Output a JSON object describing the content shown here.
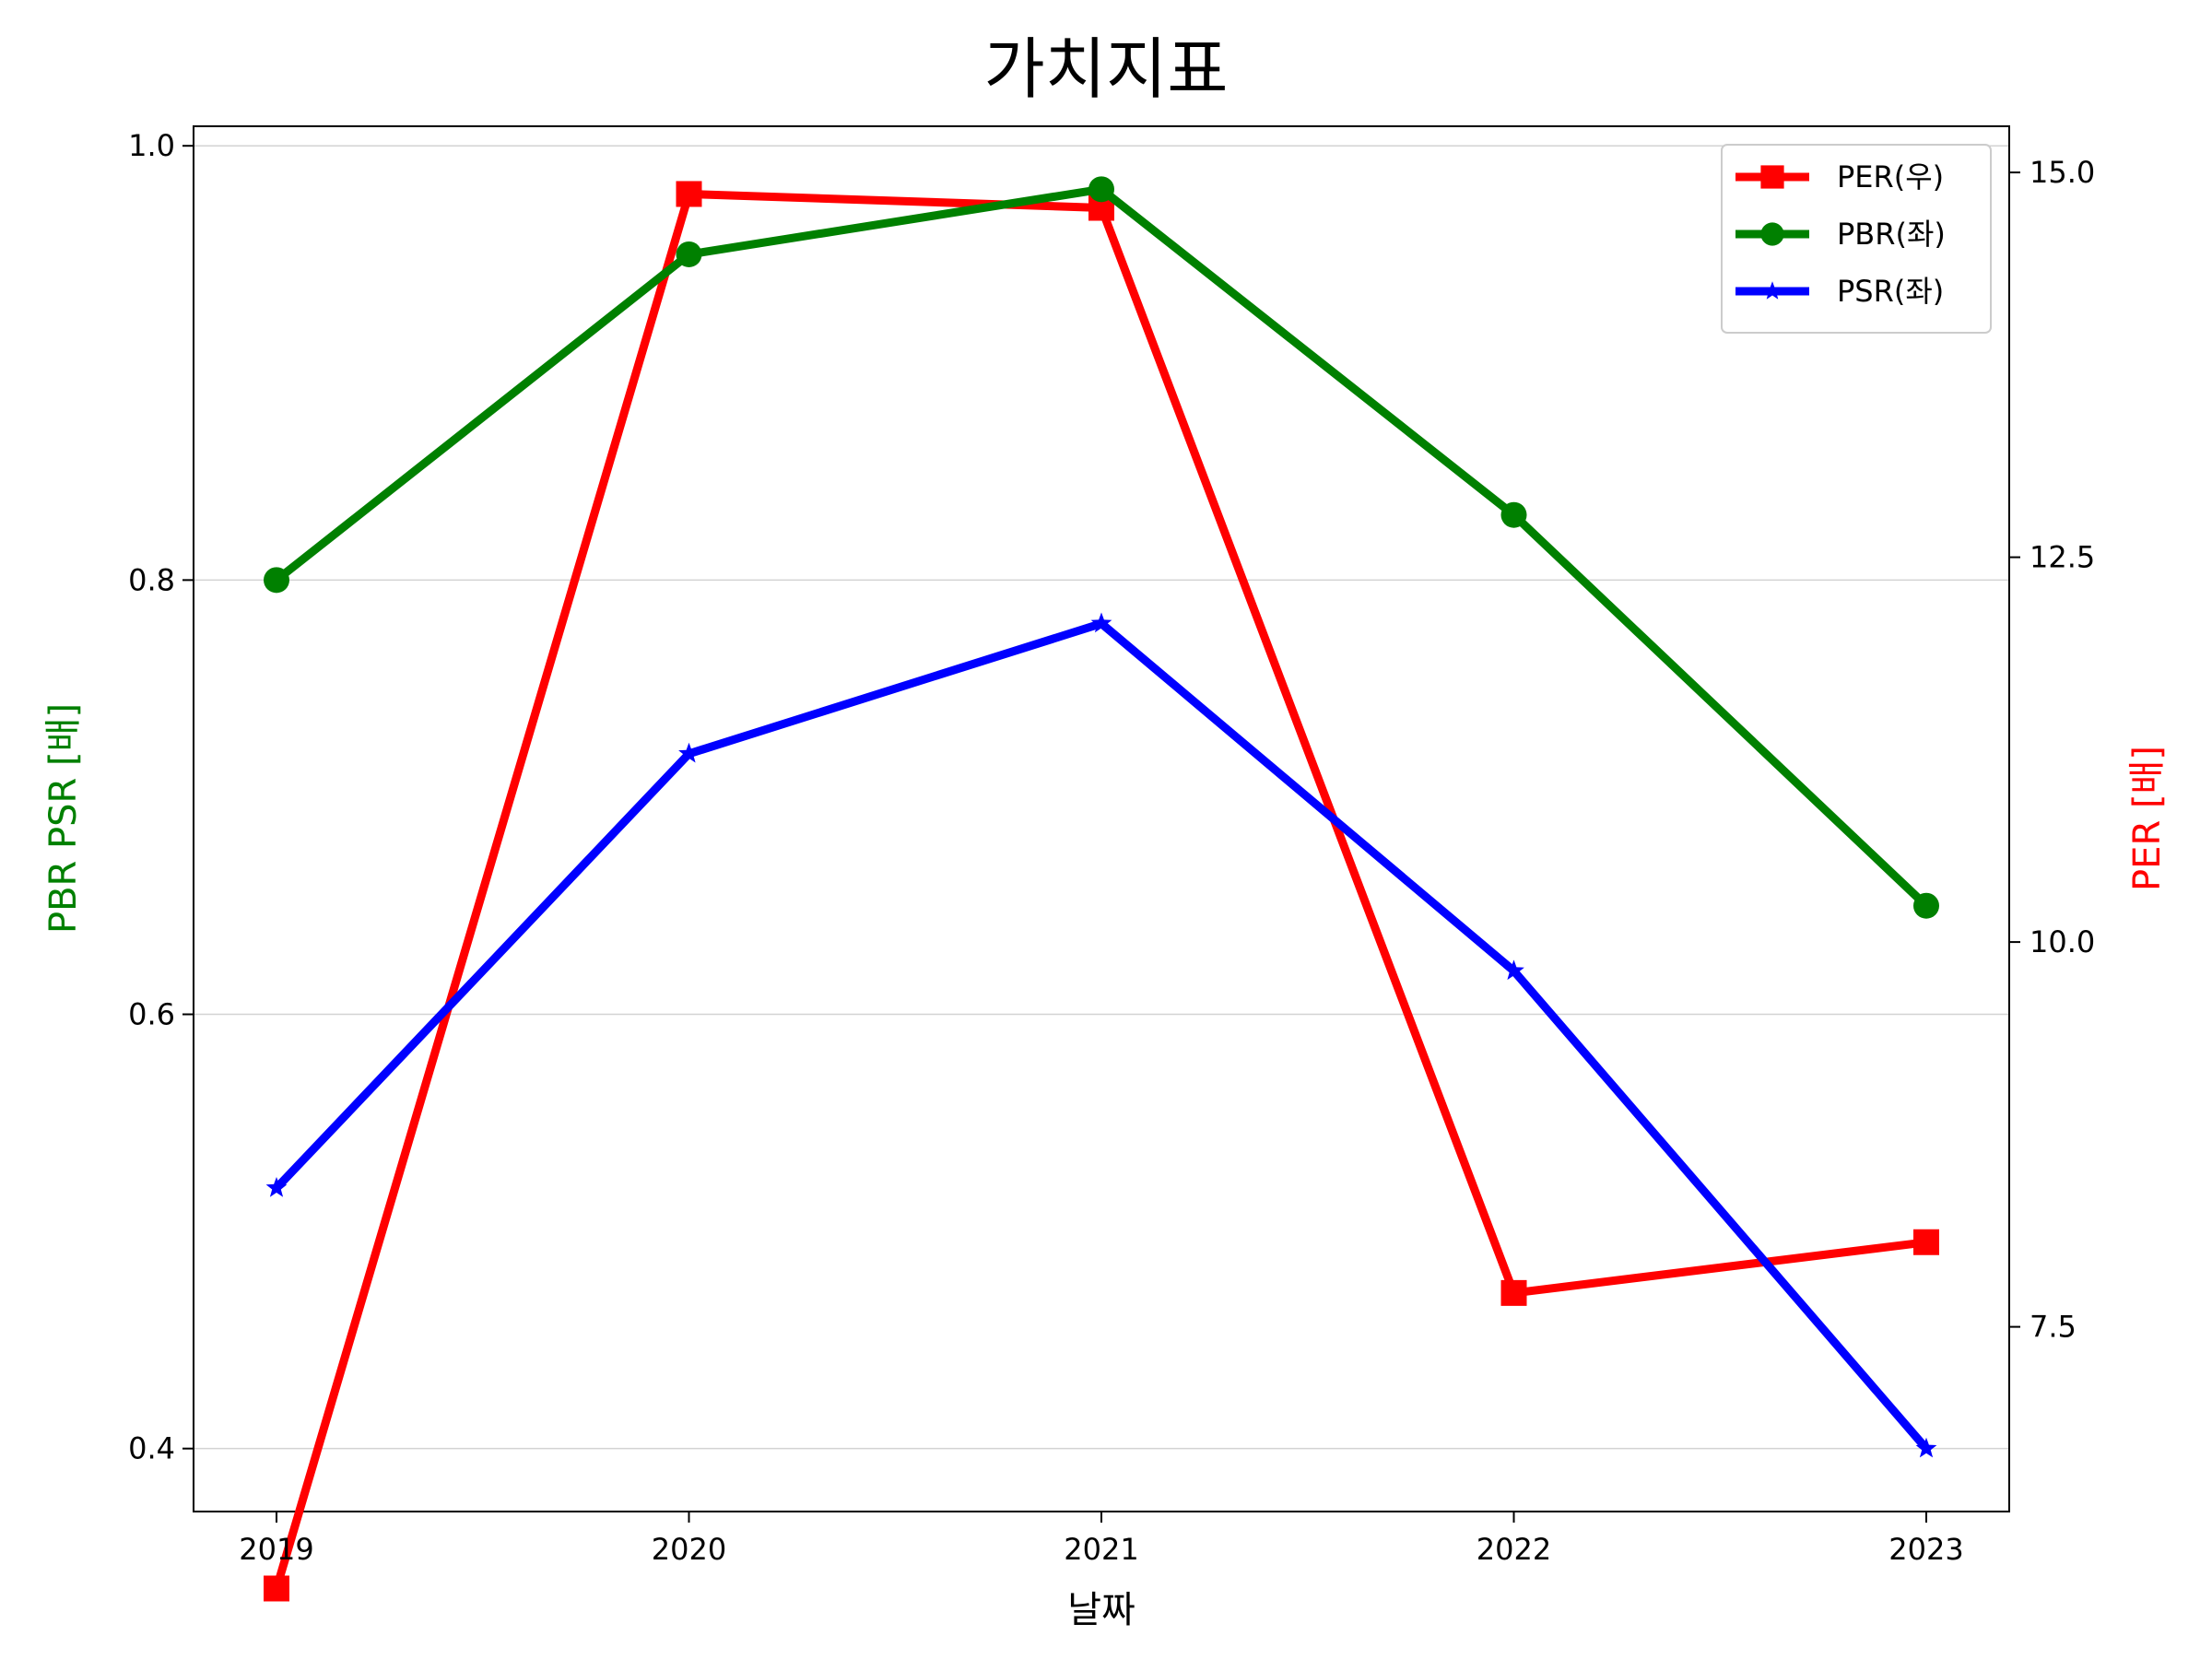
{
  "chart_data": {
    "type": "line",
    "title": "가치지표",
    "xlabel": "날짜",
    "ylabel_left": "PBR PSR [배]",
    "ylabel_right": "PER [배]",
    "ylabel_left_color": "#008000",
    "ylabel_right_color": "#ff0000",
    "categories": [
      "2019",
      "2020",
      "2021",
      "2022",
      "2023"
    ],
    "y_left": {
      "lim": [
        0.371,
        1.009
      ],
      "ticks": [
        "0.4",
        "0.6",
        "0.8",
        "1.0"
      ]
    },
    "y_right": {
      "lim": [
        6.3,
        15.3
      ],
      "ticks": [
        "7.5",
        "10.0",
        "12.5",
        "15.0"
      ]
    },
    "grid": "y-left",
    "legend_position": "top-right",
    "series": [
      {
        "name": "PER(우)",
        "axis": "right",
        "color": "#ff0000",
        "marker": "square",
        "values": [
          5.8,
          14.86,
          14.77,
          7.72,
          8.05
        ]
      },
      {
        "name": "PBR(좌)",
        "axis": "left",
        "color": "#008000",
        "marker": "circle",
        "values": [
          0.8,
          0.95,
          0.98,
          0.83,
          0.65
        ]
      },
      {
        "name": "PSR(좌)",
        "axis": "left",
        "color": "#0000ff",
        "marker": "star",
        "values": [
          0.52,
          0.72,
          0.78,
          0.62,
          0.4
        ]
      }
    ]
  }
}
